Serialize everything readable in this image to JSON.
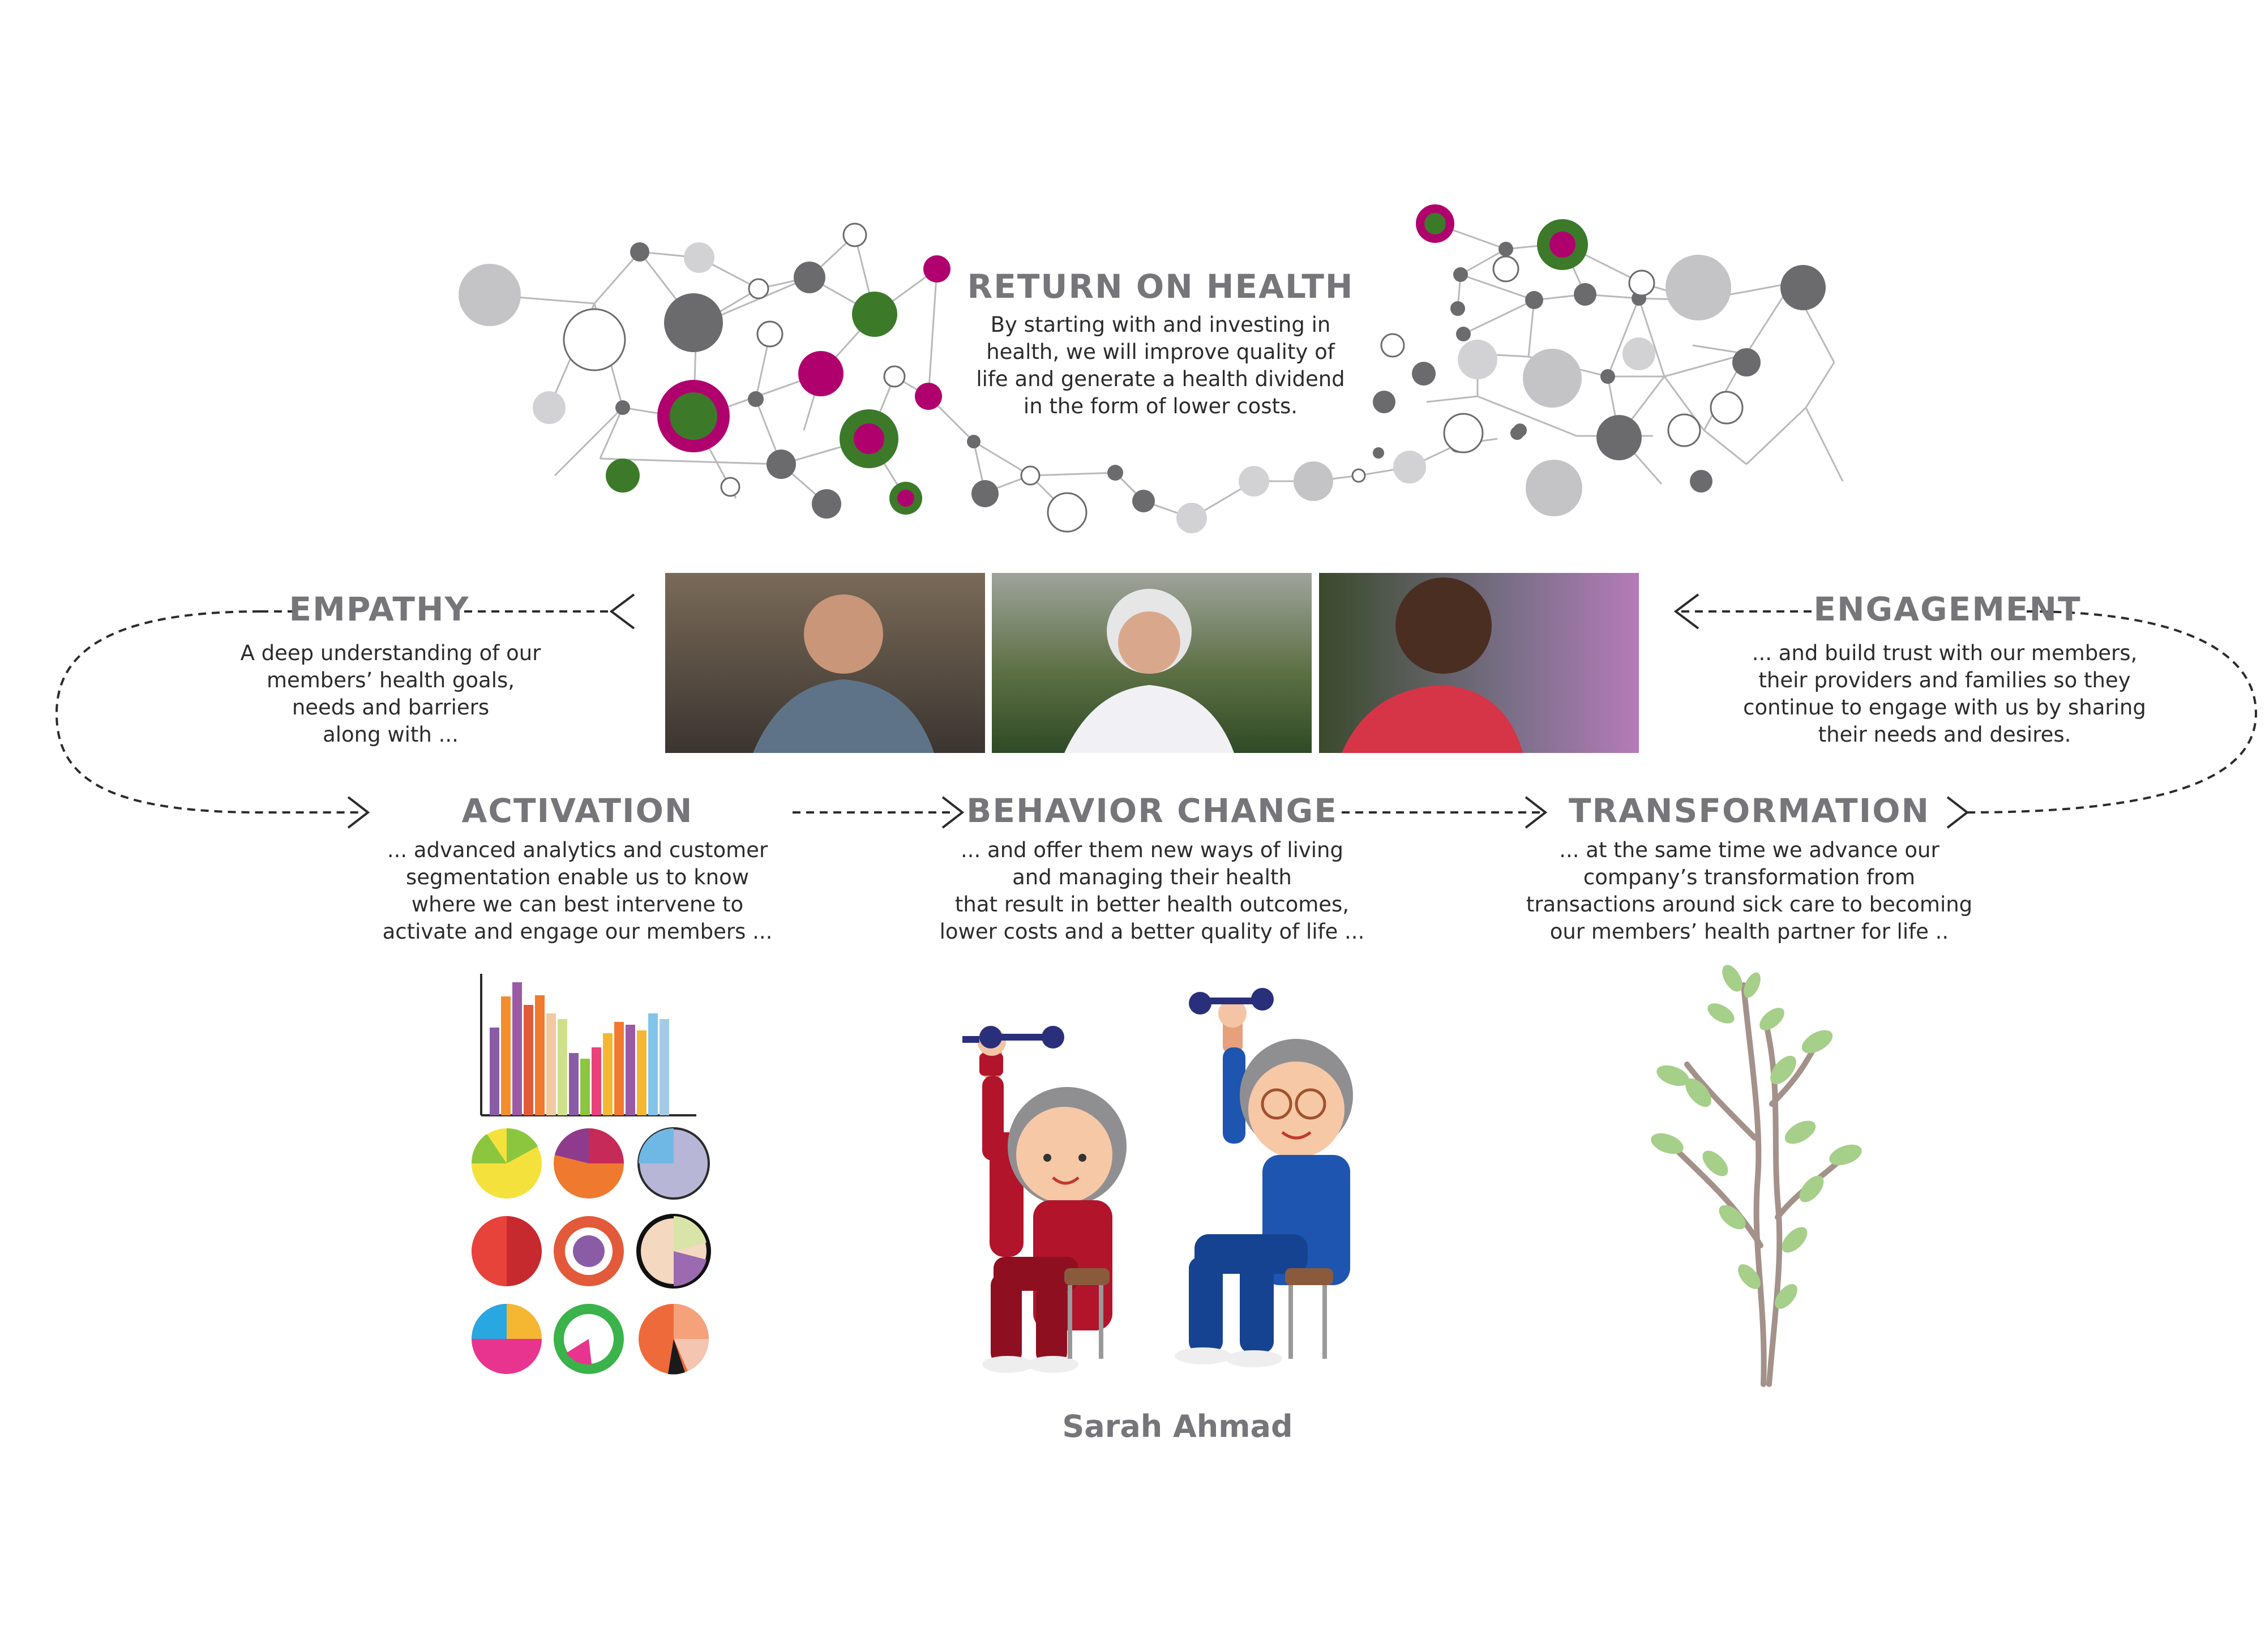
{
  "return_on_health": {
    "title": "RETURN ON HEALTH",
    "lines": [
      "By starting with and investing in",
      "health, we will improve quality of",
      "life and generate a health dividend",
      "in the form of lower costs."
    ]
  },
  "empathy": {
    "title": "EMPATHY",
    "lines": [
      "A deep understanding of our",
      "members’ health goals,",
      "needs and barriers",
      "along with ..."
    ]
  },
  "engagement": {
    "title": "ENGAGEMENT",
    "lines": [
      "... and build trust with our members,",
      "their providers and families so they",
      "continue to engage with us by sharing",
      "their needs and desires."
    ]
  },
  "activation": {
    "title": "ACTIVATION",
    "lines": [
      "... advanced analytics and customer",
      "segmentation enable us to know",
      "where we can best intervene to",
      "activate and engage our members ..."
    ]
  },
  "behavior_change": {
    "title": "BEHAVIOR CHANGE",
    "lines": [
      "... and offer them new ways of living",
      "and managing their health",
      "that result in better health outcomes,",
      "lower costs and a better quality of life ..."
    ]
  },
  "transformation": {
    "title": "TRANSFORMATION",
    "lines": [
      "... at the same time we advance our",
      "company’s transformation from",
      "transactions around sick care to becoming",
      "our members’ health partner for life .."
    ]
  },
  "credit": "Sarah Ahmad",
  "colors": {
    "heading": "#76767a",
    "magenta": "#b0006e",
    "green": "#3c7a2a",
    "dark_gray": "#6b6b6e",
    "light_gray": "#c4c4c6"
  }
}
